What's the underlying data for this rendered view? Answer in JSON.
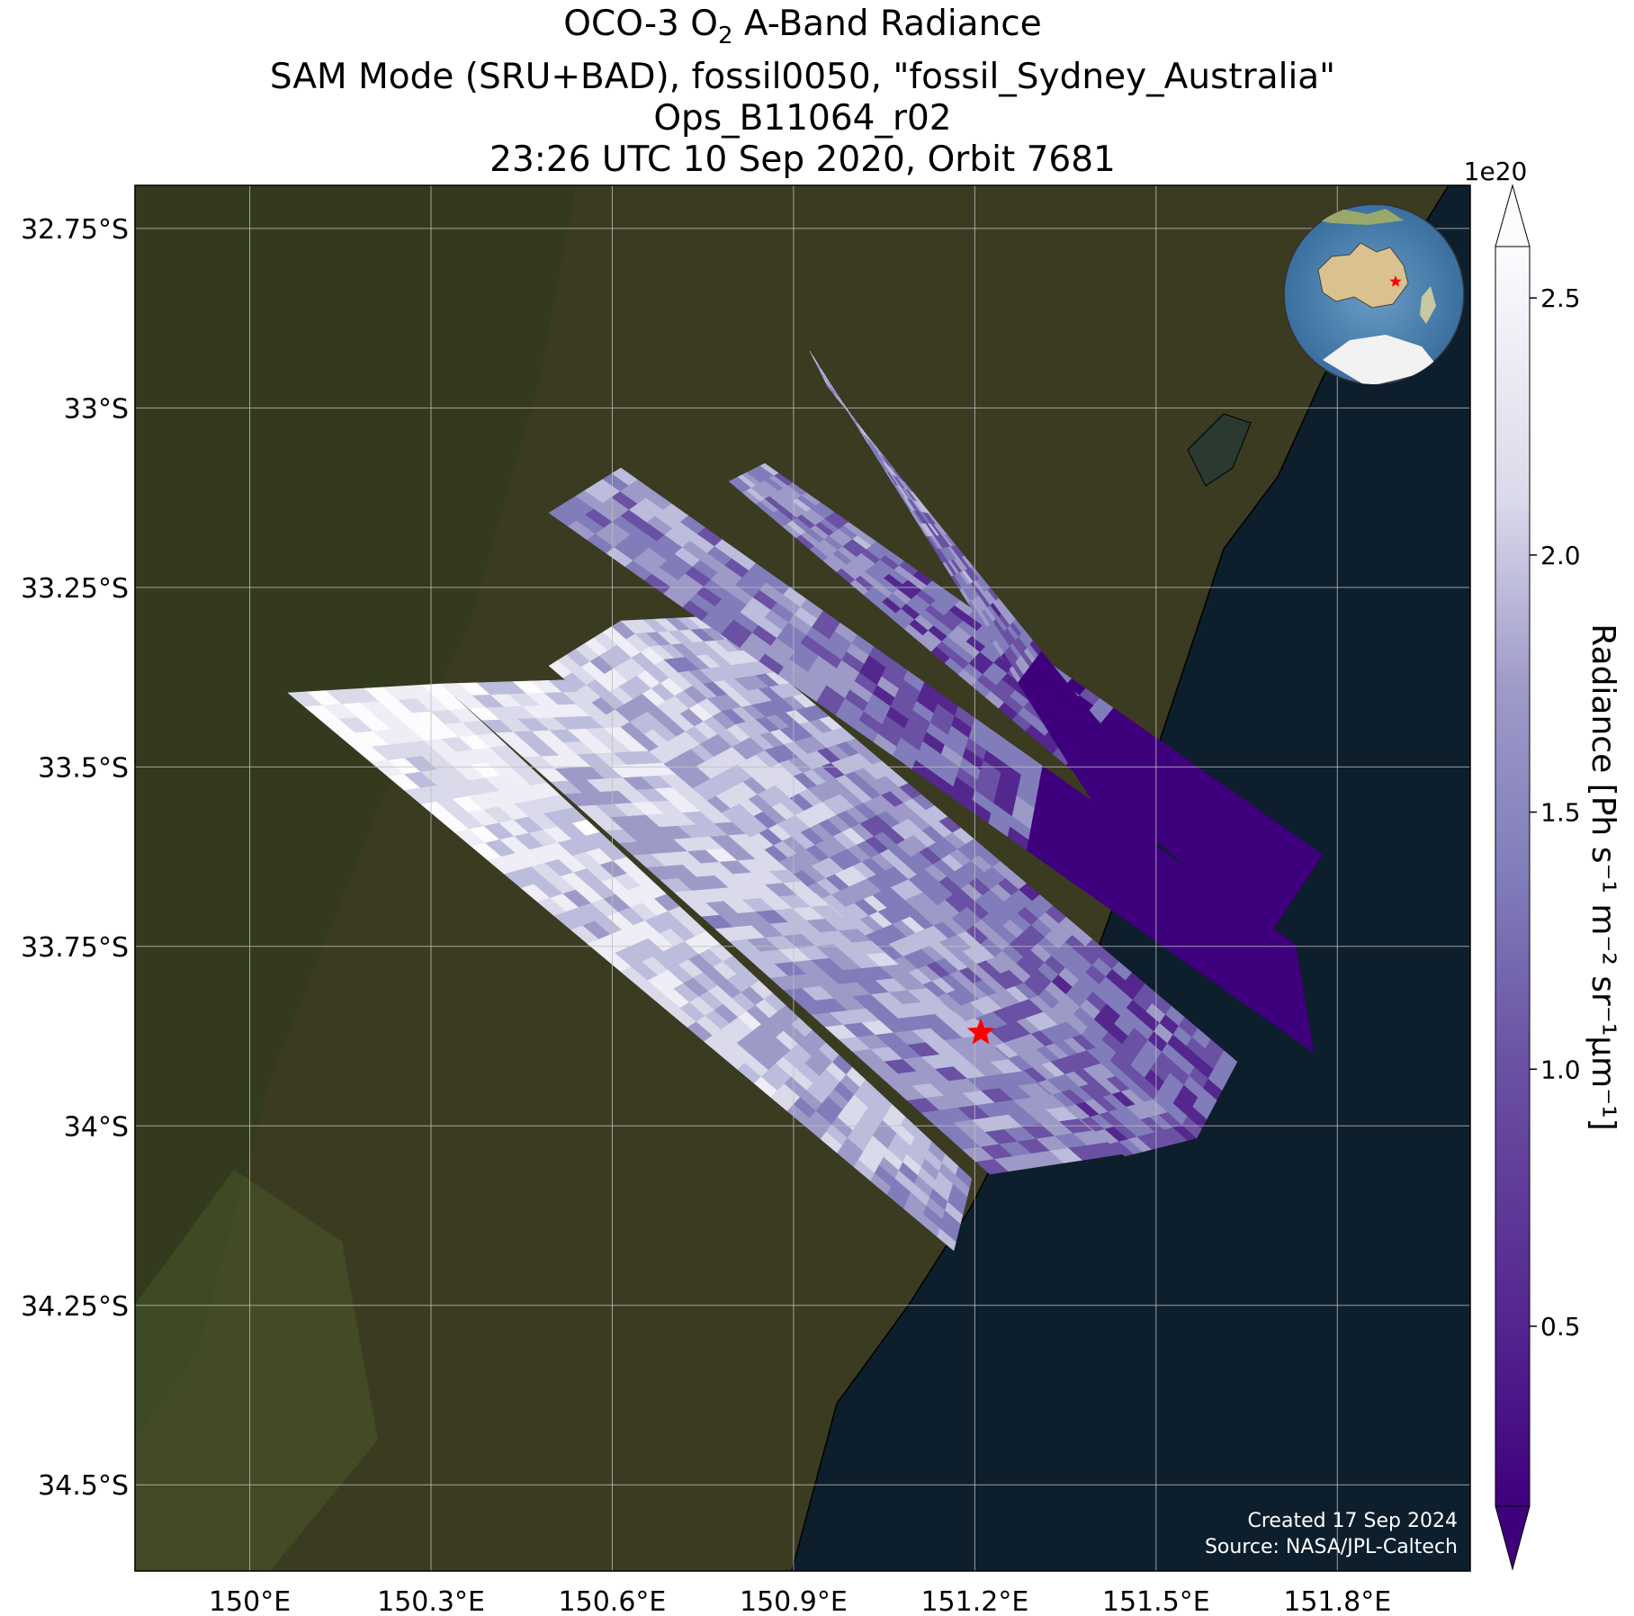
{
  "title": {
    "line1_pre": "OCO-3 O",
    "line1_sub": "2",
    "line1_post": " A-Band Radiance",
    "line2": "SAM Mode (SRU+BAD), fossil0050, \"fossil_Sydney_Australia\"",
    "line3": "Ops_B11064_r02",
    "line4": "23:26 UTC 10 Sep 2020, Orbit 7681"
  },
  "map": {
    "lon_range": [
      149.81,
      152.02
    ],
    "lat_range": [
      -34.62,
      -32.69
    ],
    "x_ticks": [
      {
        "value": 150.0,
        "label": "150°E"
      },
      {
        "value": 150.3,
        "label": "150.3°E"
      },
      {
        "value": 150.6,
        "label": "150.6°E"
      },
      {
        "value": 150.9,
        "label": "150.9°E"
      },
      {
        "value": 151.2,
        "label": "151.2°E"
      },
      {
        "value": 151.5,
        "label": "151.5°E"
      },
      {
        "value": 151.8,
        "label": "151.8°E"
      }
    ],
    "y_ticks": [
      {
        "value": -32.75,
        "label": "32.75°S"
      },
      {
        "value": -33.0,
        "label": "33°S"
      },
      {
        "value": -33.25,
        "label": "33.25°S"
      },
      {
        "value": -33.5,
        "label": "33.5°S"
      },
      {
        "value": -33.75,
        "label": "33.75°S"
      },
      {
        "value": -34.0,
        "label": "34°S"
      },
      {
        "value": -34.25,
        "label": "34.25°S"
      },
      {
        "value": -34.5,
        "label": "34.5°S"
      }
    ],
    "target": {
      "lon": 151.21,
      "lat": -33.87,
      "marker": "red-star"
    },
    "credit_line1": "Created 17 Sep 2024",
    "credit_line2": "Source: NASA/JPL-Caltech",
    "colors": {
      "land": "#3b3b22",
      "ocean": "#0d1e2c",
      "target_star": "#ff0000",
      "gridline": "#bfbfbf"
    },
    "inset": {
      "type": "globe",
      "highlight": "Australia",
      "marker": "red-star"
    }
  },
  "colorbar": {
    "colormap": "Purples_r",
    "min": 0.15,
    "max": 2.6,
    "extend": "both",
    "ticks": [
      {
        "value": 0.5,
        "label": "0.5"
      },
      {
        "value": 1.0,
        "label": "1.0"
      },
      {
        "value": 1.5,
        "label": "1.5"
      },
      {
        "value": 2.0,
        "label": "2.0"
      },
      {
        "value": 2.5,
        "label": "2.5"
      }
    ],
    "exponent": "1e20",
    "label": "Radiance [Ph s⁻¹ m⁻² sr⁻¹μm⁻¹]",
    "color_low": "#3f007d",
    "color_mid": "#807dba",
    "color_high": "#fcfbfd"
  }
}
